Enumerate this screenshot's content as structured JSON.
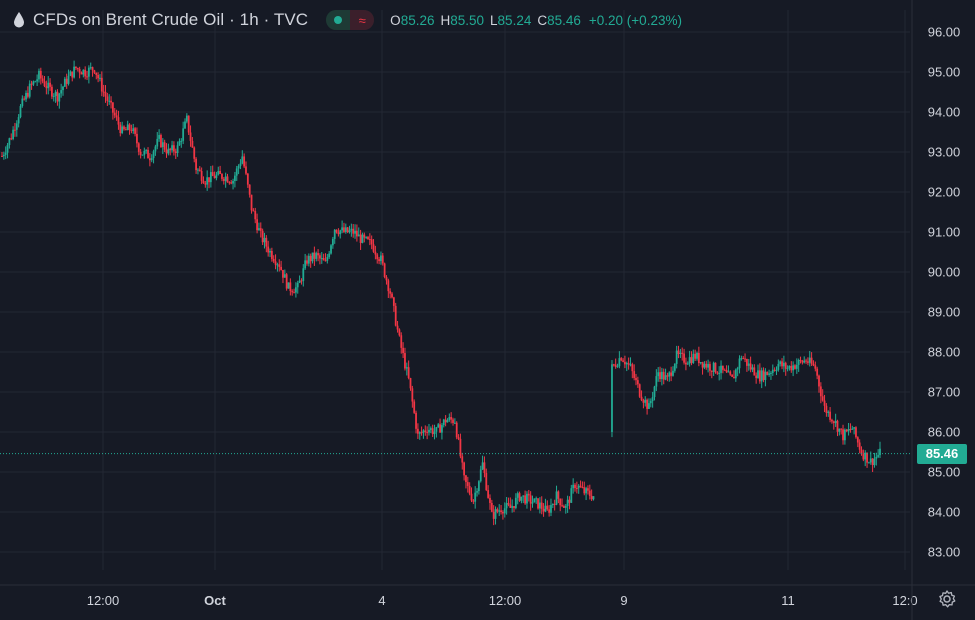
{
  "header": {
    "title": "CFDs on Brent Crude Oil · 1h · TVC",
    "open_label": "O",
    "open": "85.26",
    "high_label": "H",
    "high": "85.50",
    "low_label": "L",
    "low": "85.24",
    "close_label": "C",
    "close": "85.46",
    "change": "+0.20 (+0.23%)"
  },
  "icons": {
    "symbol": "oil-drop-icon",
    "market_status": "market-open-dot-icon",
    "realtime": "wave-icon",
    "settings": "gear-icon"
  },
  "price_tag": "85.46",
  "colors": {
    "background": "#161a25",
    "grid": "#232834",
    "up": "#22ab94",
    "down": "#f23645",
    "text": "#d1d4dc"
  },
  "chart_data": {
    "type": "candlestick",
    "interval": "1h",
    "ylim": [
      82.7,
      96.3
    ],
    "y_ticks": [
      "96.00",
      "95.00",
      "94.00",
      "93.00",
      "92.00",
      "91.00",
      "90.00",
      "89.00",
      "88.00",
      "87.00",
      "86.00",
      "85.00",
      "84.00",
      "83.00"
    ],
    "x_ticks": [
      "12:00",
      "Oct",
      "4",
      "12:00",
      "9",
      "11",
      "12:0"
    ],
    "last_price": 85.46,
    "last_price_line": "dotted",
    "grid": true,
    "close_path": [
      [
        0,
        92.9
      ],
      [
        5,
        93.4
      ],
      [
        10,
        94.1
      ],
      [
        15,
        94.6
      ],
      [
        20,
        94.9
      ],
      [
        25,
        94.6
      ],
      [
        30,
        94.4
      ],
      [
        35,
        94.8
      ],
      [
        40,
        95.1
      ],
      [
        45,
        95.0
      ],
      [
        50,
        95.1
      ],
      [
        55,
        94.5
      ],
      [
        60,
        94.0
      ],
      [
        65,
        93.5
      ],
      [
        70,
        93.6
      ],
      [
        75,
        93.0
      ],
      [
        80,
        92.9
      ],
      [
        85,
        93.3
      ],
      [
        90,
        93.0
      ],
      [
        95,
        93.1
      ],
      [
        100,
        93.8
      ],
      [
        105,
        92.6
      ],
      [
        110,
        92.3
      ],
      [
        115,
        92.4
      ],
      [
        120,
        92.4
      ],
      [
        125,
        92.3
      ],
      [
        130,
        92.9
      ],
      [
        135,
        91.6
      ],
      [
        140,
        90.9
      ],
      [
        145,
        90.5
      ],
      [
        150,
        90.2
      ],
      [
        155,
        89.6
      ],
      [
        160,
        89.6
      ],
      [
        165,
        90.3
      ],
      [
        170,
        90.4
      ],
      [
        175,
        90.2
      ],
      [
        180,
        91.1
      ],
      [
        185,
        91.0
      ],
      [
        190,
        91.0
      ],
      [
        195,
        90.8
      ],
      [
        200,
        90.7
      ],
      [
        205,
        90.3
      ],
      [
        210,
        89.5
      ],
      [
        215,
        88.3
      ],
      [
        220,
        87.3
      ],
      [
        225,
        85.9
      ],
      [
        230,
        86.1
      ],
      [
        235,
        86.0
      ],
      [
        240,
        86.3
      ],
      [
        245,
        86.3
      ],
      [
        250,
        84.8
      ],
      [
        255,
        84.3
      ],
      [
        260,
        85.2
      ],
      [
        265,
        83.9
      ],
      [
        270,
        84.1
      ],
      [
        275,
        84.1
      ],
      [
        280,
        84.4
      ],
      [
        285,
        84.3
      ],
      [
        290,
        84.2
      ],
      [
        295,
        84.0
      ],
      [
        300,
        84.4
      ],
      [
        305,
        84.1
      ],
      [
        310,
        84.7
      ],
      [
        315,
        84.5
      ],
      [
        320,
        84.4
      ],
      [
        null,
        null
      ],
      [
        330,
        87.6
      ],
      [
        335,
        87.9
      ],
      [
        340,
        87.6
      ],
      [
        345,
        87.0
      ],
      [
        350,
        86.6
      ],
      [
        355,
        87.5
      ],
      [
        360,
        87.3
      ],
      [
        365,
        87.9
      ],
      [
        370,
        87.8
      ],
      [
        375,
        87.9
      ],
      [
        380,
        87.7
      ],
      [
        385,
        87.6
      ],
      [
        390,
        87.5
      ],
      [
        395,
        87.3
      ],
      [
        400,
        87.9
      ],
      [
        405,
        87.6
      ],
      [
        410,
        87.4
      ],
      [
        415,
        87.5
      ],
      [
        420,
        87.7
      ],
      [
        425,
        87.6
      ],
      [
        430,
        87.7
      ],
      [
        435,
        87.8
      ],
      [
        440,
        87.6
      ],
      [
        445,
        86.6
      ],
      [
        450,
        86.3
      ],
      [
        455,
        85.9
      ],
      [
        460,
        86.1
      ],
      [
        465,
        85.5
      ],
      [
        470,
        85.26
      ],
      [
        475,
        85.46
      ]
    ]
  }
}
